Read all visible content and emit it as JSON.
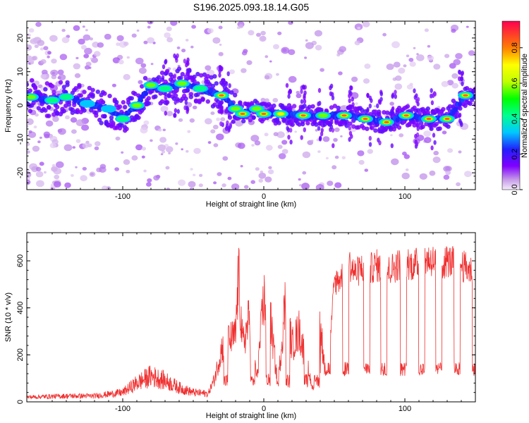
{
  "title": "S196.2025.093.18.14.G05",
  "chart_data": [
    {
      "type": "heatmap",
      "xlabel": "Height of straight line (km)",
      "ylabel": "Frequency (Hz)",
      "xlim": [
        -168,
        150
      ],
      "ylim": [
        -25,
        25
      ],
      "xticks": [
        -100,
        0,
        100
      ],
      "yticks": [
        -20,
        -10,
        0,
        10,
        20
      ],
      "colorbar": {
        "label": "Normalized spectral amplitude",
        "range": [
          0,
          0.95
        ],
        "ticks": [
          0,
          0.2,
          0.4,
          0.6,
          0.8
        ],
        "placement": "right"
      },
      "ridge": [
        {
          "x": -165,
          "f": 2.5,
          "a": 0.6
        },
        {
          "x": -150,
          "f": 1.5,
          "a": 0.5
        },
        {
          "x": -140,
          "f": 2.5,
          "a": 0.5
        },
        {
          "x": -125,
          "f": 0.5,
          "a": 0.4
        },
        {
          "x": -110,
          "f": -1,
          "a": 0.4
        },
        {
          "x": -100,
          "f": -4,
          "a": 0.5
        },
        {
          "x": -90,
          "f": 0,
          "a": 0.6
        },
        {
          "x": -80,
          "f": 6,
          "a": 0.7
        },
        {
          "x": -70,
          "f": 5,
          "a": 0.5
        },
        {
          "x": -58,
          "f": 6.5,
          "a": 0.6
        },
        {
          "x": -45,
          "f": 5,
          "a": 0.5
        },
        {
          "x": -30,
          "f": 3,
          "a": 0.9
        },
        {
          "x": -20,
          "f": -1,
          "a": 0.6
        },
        {
          "x": -15,
          "f": -2.5,
          "a": 0.9
        },
        {
          "x": -5,
          "f": -1,
          "a": 0.6
        },
        {
          "x": 0,
          "f": -2.5,
          "a": 0.95
        },
        {
          "x": 12,
          "f": -2.5,
          "a": 0.8
        },
        {
          "x": 28,
          "f": -3,
          "a": 0.9
        },
        {
          "x": 42,
          "f": -3,
          "a": 0.6
        },
        {
          "x": 57,
          "f": -3,
          "a": 0.95
        },
        {
          "x": 72,
          "f": -4,
          "a": 0.9
        },
        {
          "x": 87,
          "f": -5,
          "a": 0.9
        },
        {
          "x": 101,
          "f": -3,
          "a": 0.95
        },
        {
          "x": 117,
          "f": -4,
          "a": 0.9
        },
        {
          "x": 130,
          "f": -4,
          "a": 0.95
        },
        {
          "x": 143,
          "f": 3,
          "a": 0.95
        }
      ]
    },
    {
      "type": "line",
      "xlabel": "Height of straight line (km)",
      "ylabel": "SNR (10 * v/v)",
      "xlim": [
        -168,
        150
      ],
      "ylim": [
        0,
        720
      ],
      "xticks": [
        -100,
        0,
        100
      ],
      "yticks": [
        0,
        200,
        400,
        600
      ],
      "color": "#f03030",
      "series": [
        {
          "x": [
            -168,
            -140,
            -120,
            -100,
            -90,
            -80,
            -70,
            -60,
            -50,
            -40,
            -35,
            -30,
            -25,
            -20,
            -18,
            -15,
            -10,
            -5,
            0,
            5,
            10,
            15,
            20,
            25,
            30,
            35,
            40,
            45,
            50,
            55,
            60,
            65,
            70,
            75,
            80,
            85,
            90,
            95,
            100,
            105,
            110,
            115,
            120,
            125,
            130,
            135,
            140,
            145,
            150
          ],
          "values": [
            20,
            25,
            25,
            40,
            80,
            110,
            90,
            60,
            40,
            35,
            120,
            280,
            320,
            350,
            680,
            300,
            450,
            120,
            550,
            420,
            80,
            520,
            300,
            380,
            220,
            60,
            400,
            80,
            560,
            580,
            650,
            600,
            630,
            620,
            640,
            600,
            620,
            640,
            660,
            640,
            650,
            670,
            660,
            640,
            660,
            650,
            640,
            620,
            600
          ]
        }
      ]
    }
  ]
}
